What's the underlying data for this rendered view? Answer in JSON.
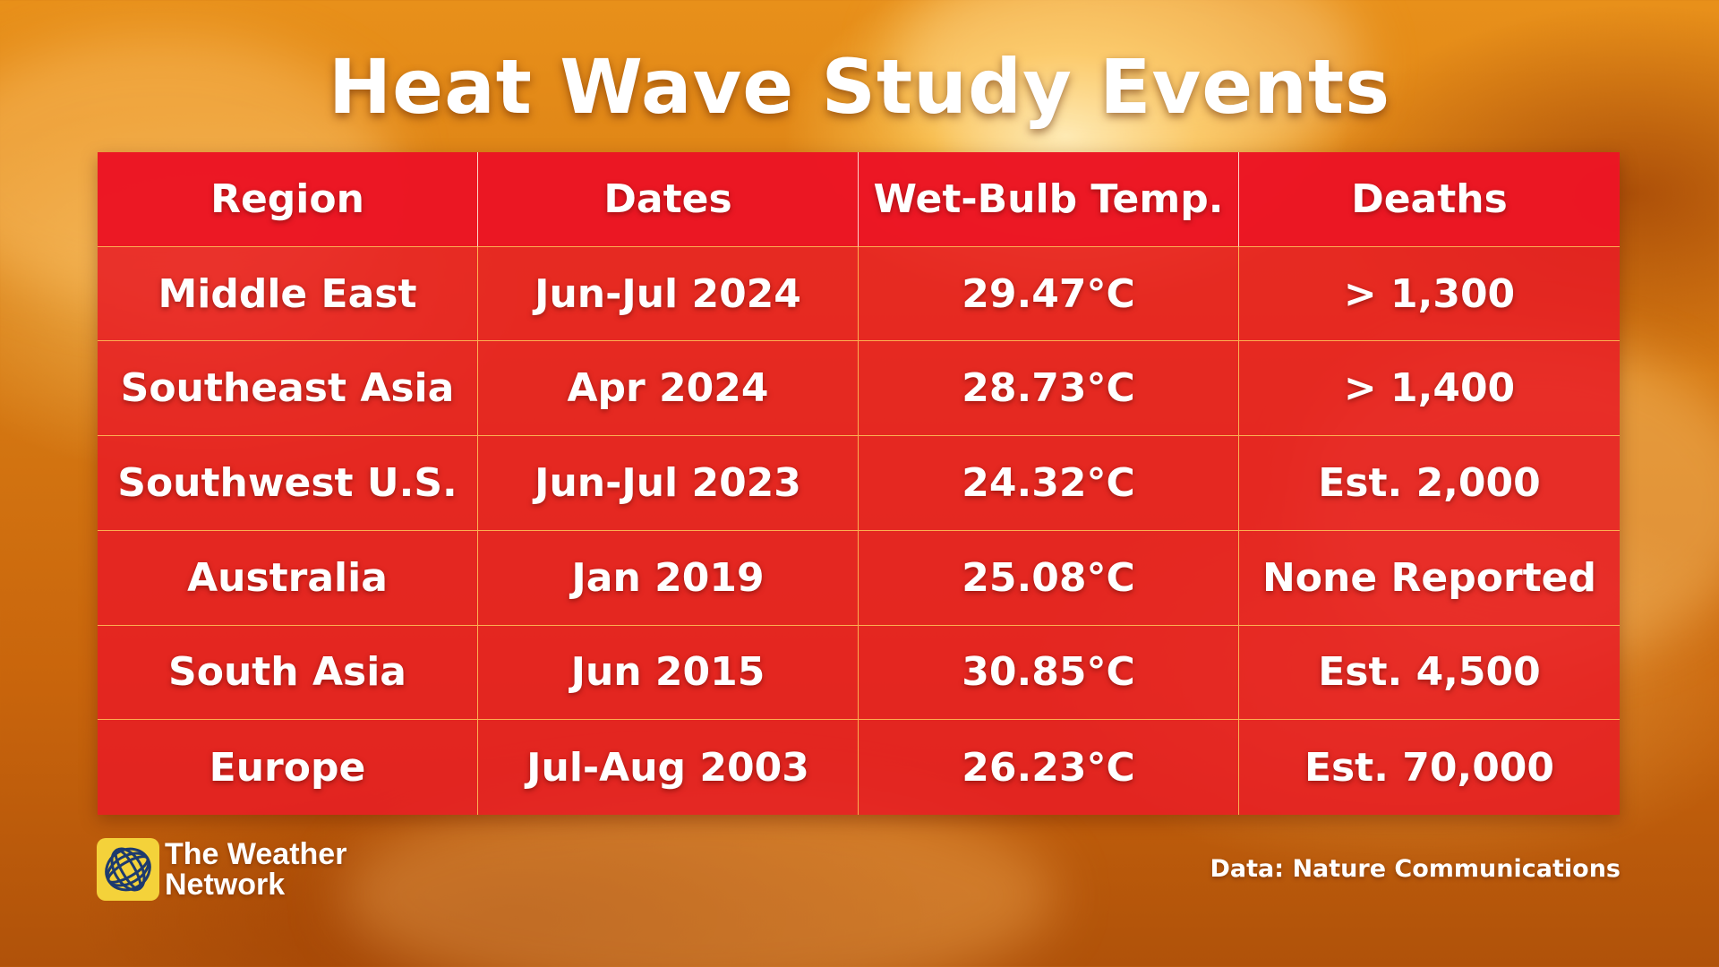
{
  "title": "Heat Wave Study Events",
  "table": {
    "headers": [
      "Region",
      "Dates",
      "Wet-Bulb Temp.",
      "Deaths"
    ],
    "rows": [
      [
        "Middle East",
        "Jun-Jul 2024",
        "29.47°C",
        "> 1,300"
      ],
      [
        "Southeast Asia",
        "Apr 2024",
        "28.73°C",
        "> 1,400"
      ],
      [
        "Southwest U.S.",
        "Jun-Jul 2023",
        "24.32°C",
        "Est. 2,000"
      ],
      [
        "Australia",
        "Jan 2019",
        "25.08°C",
        "None Reported"
      ],
      [
        "South Asia",
        "Jun 2015",
        "30.85°C",
        "Est. 4,500"
      ],
      [
        "Europe",
        "Jul-Aug 2003",
        "26.23°C",
        "Est. 70,000"
      ]
    ]
  },
  "logo": {
    "line1": "The Weather",
    "line2": "Network",
    "icon": "globe-swirl-icon",
    "color": "#f4d23a"
  },
  "source": "Data: Nature Communications",
  "colors": {
    "table_fill": "#e81c24",
    "grid_line": "#ffc85a"
  }
}
